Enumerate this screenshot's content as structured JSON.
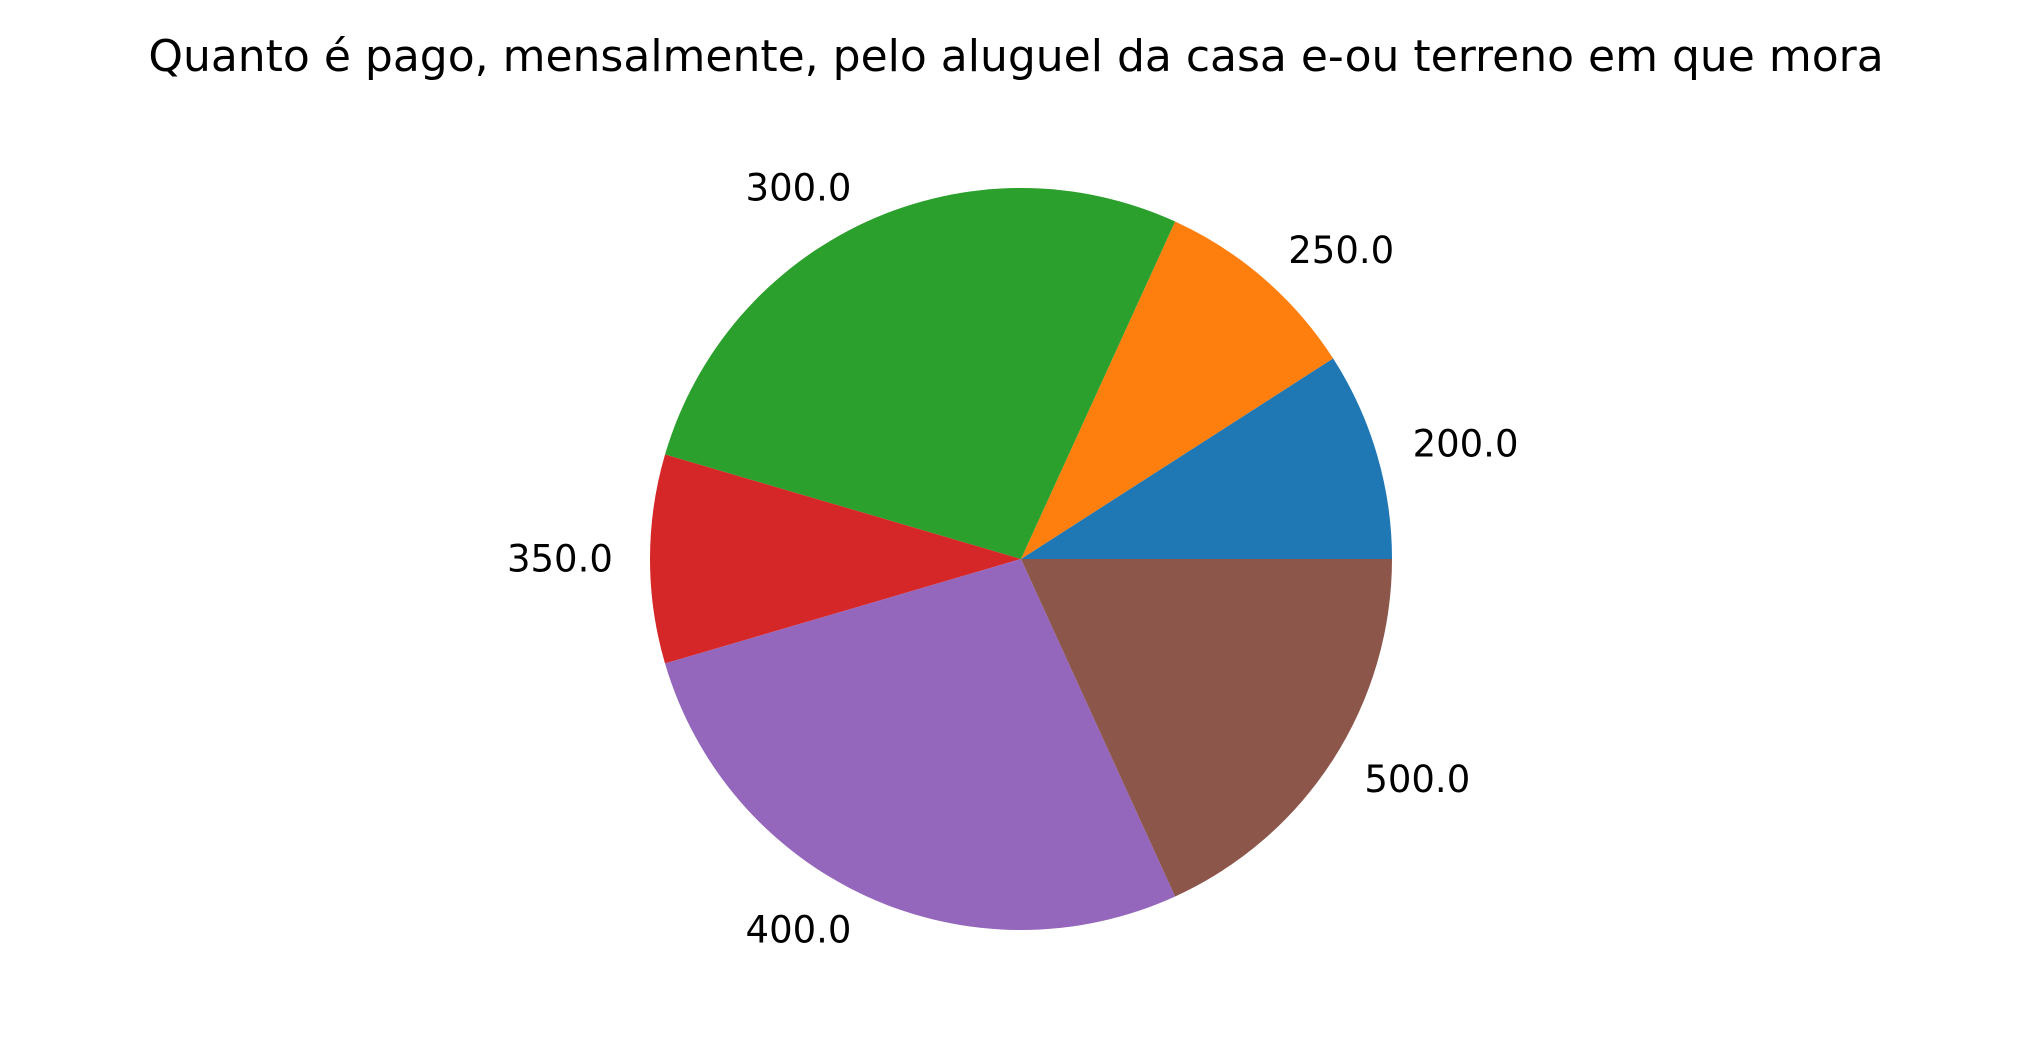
{
  "chart_data": {
    "type": "pie",
    "title": "Quanto é pago, mensalmente, pelo aluguel da casa e-ou terreno em que mora",
    "labels": [
      "200.0",
      "250.0",
      "300.0",
      "350.0",
      "400.0",
      "500.0"
    ],
    "values": [
      1,
      1,
      3,
      1,
      3,
      2
    ],
    "colors": [
      "#1f77b4",
      "#ff7f0e",
      "#2ca02c",
      "#d62728",
      "#9467bd",
      "#8c564b"
    ],
    "start_angle_deg": 0,
    "direction": "counterclockwise"
  }
}
